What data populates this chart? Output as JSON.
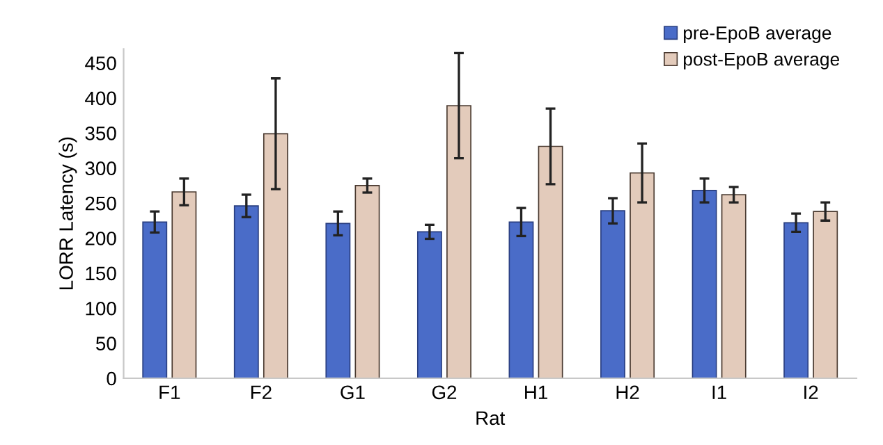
{
  "chart_data": {
    "type": "bar",
    "xlabel": "Rat",
    "ylabel": "LORR Latency (s)",
    "categories": [
      "F1",
      "F2",
      "G1",
      "G2",
      "H1",
      "H2",
      "I1",
      "I2"
    ],
    "series": [
      {
        "name": "pre-EpoB average",
        "color": "#4a6cc8",
        "values": [
          223,
          246,
          221,
          209,
          223,
          239,
          268,
          222
        ],
        "errors": [
          15,
          16,
          17,
          10,
          20,
          18,
          17,
          13
        ]
      },
      {
        "name": "post-EpoB average",
        "color": "#e3cbbb",
        "values": [
          266,
          349,
          275,
          389,
          331,
          293,
          262,
          238
        ],
        "errors": [
          19,
          79,
          10,
          75,
          54,
          42,
          11,
          13
        ]
      }
    ],
    "ylim": [
      0,
      470
    ],
    "yticks": [
      0,
      50,
      100,
      150,
      200,
      250,
      300,
      350,
      400,
      450
    ],
    "grid": false,
    "legend": "top right"
  }
}
